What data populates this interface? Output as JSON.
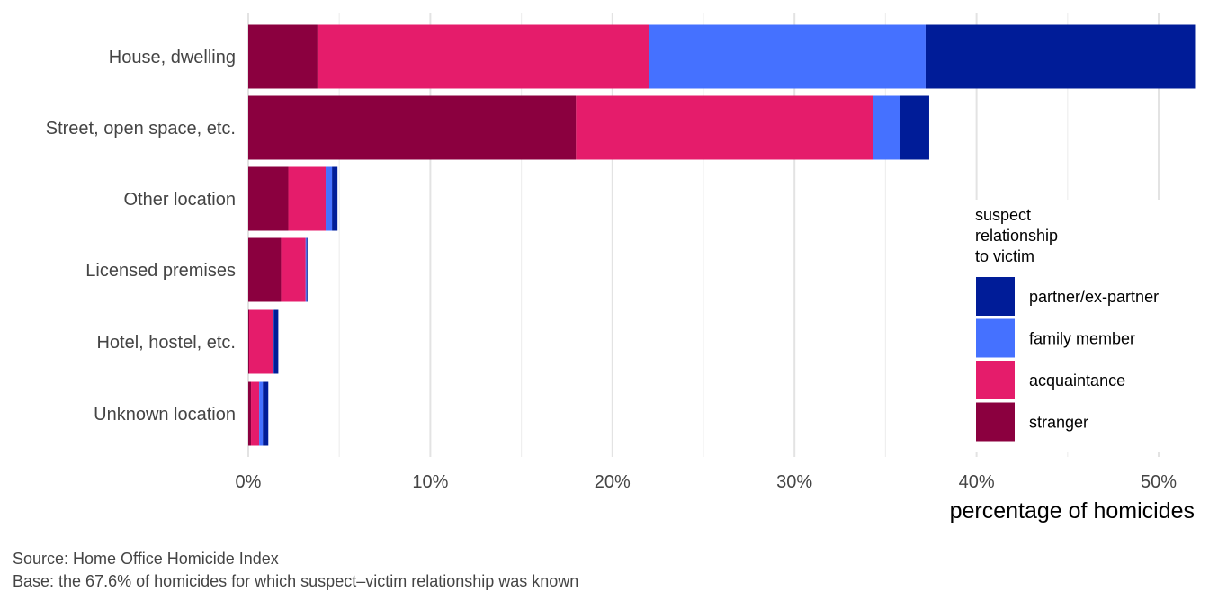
{
  "chart_data": {
    "type": "bar",
    "orientation": "horizontal",
    "stacked": true,
    "categories": [
      "House, dwelling",
      "Street, open space, etc.",
      "Other location",
      "Licensed premises",
      "Hotel, hostel, etc.",
      "Unknown location"
    ],
    "series": [
      {
        "name": "stranger",
        "color": "#8B003F",
        "values": [
          3.8,
          18.0,
          2.2,
          1.8,
          0.05,
          0.15
        ]
      },
      {
        "name": "acquaintance",
        "color": "#E51C6B",
        "values": [
          18.2,
          16.3,
          2.05,
          1.35,
          1.3,
          0.45
        ]
      },
      {
        "name": "family member",
        "color": "#4571FF",
        "values": [
          15.2,
          1.5,
          0.35,
          0.05,
          0.05,
          0.2
        ]
      },
      {
        "name": "partner/ex-partner",
        "color": "#001C98",
        "values": [
          14.8,
          1.6,
          0.3,
          0.05,
          0.25,
          0.3
        ]
      }
    ],
    "xlim": [
      0,
      52
    ],
    "xticks": [
      0,
      10,
      20,
      30,
      40,
      50
    ],
    "xtick_labels": [
      "0%",
      "10%",
      "20%",
      "30%",
      "40%",
      "50%"
    ],
    "xlabel": "percentage of homicides",
    "ylabel": "",
    "grid": true,
    "legend": {
      "title_lines": [
        "suspect",
        "relationship",
        "to victim"
      ],
      "placement": "right",
      "order": [
        "partner/ex-partner",
        "family member",
        "acquaintance",
        "stranger"
      ]
    },
    "caption_lines": [
      "Source: Home Office Homicide Index",
      "Base: the 67.6% of homicides for which suspect–victim relationship was known"
    ]
  }
}
